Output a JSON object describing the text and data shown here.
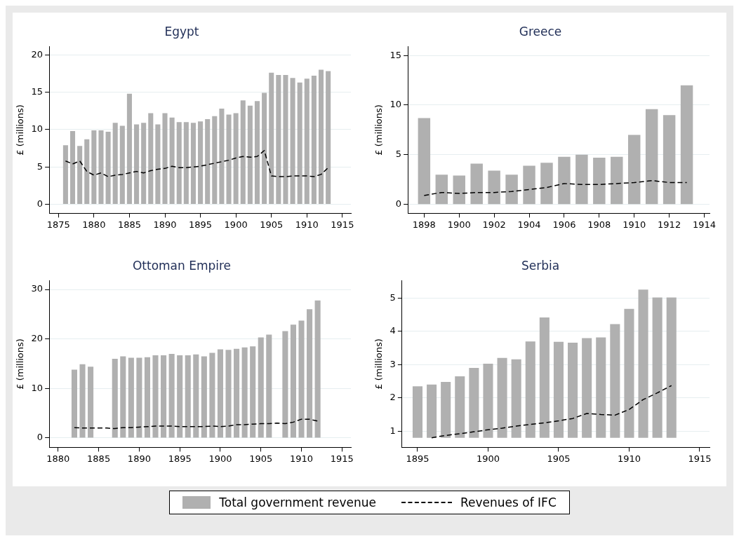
{
  "chart_data": [
    {
      "type": "bar",
      "title": "Egypt",
      "ylabel": "£ (millions)",
      "xlim": [
        1873.7,
        1916.2
      ],
      "xticks": [
        1875,
        1880,
        1885,
        1890,
        1895,
        1900,
        1905,
        1910,
        1915
      ],
      "ylim": [
        -1.2,
        21.1
      ],
      "yticks": [
        0,
        5,
        10,
        15,
        20
      ],
      "grid": "y",
      "legend": "bottom",
      "x": [
        1876,
        1877,
        1878,
        1879,
        1880,
        1881,
        1882,
        1883,
        1884,
        1885,
        1886,
        1887,
        1888,
        1889,
        1890,
        1891,
        1892,
        1893,
        1894,
        1895,
        1896,
        1897,
        1898,
        1899,
        1900,
        1901,
        1902,
        1903,
        1904,
        1905,
        1906,
        1907,
        1908,
        1909,
        1910,
        1911,
        1912,
        1913
      ],
      "series": [
        {
          "name": "Total government revenue",
          "color": "#b0b0b0",
          "values": [
            7.9,
            9.8,
            7.8,
            8.7,
            9.9,
            9.9,
            9.7,
            10.9,
            10.5,
            14.8,
            10.7,
            10.9,
            12.2,
            10.7,
            12.2,
            11.6,
            11.0,
            11.0,
            10.9,
            11.1,
            11.4,
            11.8,
            12.8,
            12.0,
            12.2,
            13.9,
            13.2,
            13.8,
            14.9,
            17.6,
            17.3,
            17.3,
            16.9,
            16.3,
            16.8,
            17.2,
            18.0,
            17.8
          ]
        },
        {
          "name": "Revenues of IFC",
          "type": "line",
          "color": "#000000",
          "line_style": "dashed",
          "marker": "none",
          "values": [
            5.8,
            5.4,
            5.8,
            4.4,
            3.9,
            4.2,
            3.7,
            3.9,
            4.0,
            4.2,
            4.4,
            4.2,
            4.5,
            4.7,
            4.8,
            5.1,
            4.9,
            4.9,
            5.0,
            5.1,
            5.3,
            5.5,
            5.7,
            5.9,
            6.2,
            6.4,
            6.3,
            6.4,
            7.2,
            3.8,
            3.7,
            3.7,
            3.8,
            3.8,
            3.8,
            3.7,
            4.0,
            4.9
          ]
        }
      ]
    },
    {
      "type": "bar",
      "title": "Greece",
      "ylabel": "£ (millions)",
      "xlim": [
        1897.07,
        1914.3
      ],
      "xticks": [
        1898,
        1900,
        1902,
        1904,
        1906,
        1908,
        1910,
        1912,
        1914
      ],
      "ylim": [
        -0.9,
        15.9
      ],
      "yticks": [
        0,
        5,
        10,
        15
      ],
      "grid": "y",
      "x": [
        1898,
        1899,
        1900,
        1901,
        1902,
        1903,
        1904,
        1905,
        1906,
        1907,
        1908,
        1909,
        1910,
        1911,
        1912,
        1913
      ],
      "series": [
        {
          "color": "#b0b0b0",
          "values": [
            8.7,
            3.0,
            2.9,
            4.1,
            3.4,
            3.0,
            3.9,
            4.2,
            4.8,
            5.0,
            4.7,
            4.8,
            7.0,
            9.6,
            9.0,
            12.0
          ]
        },
        {
          "type": "line",
          "color": "#000000",
          "line_style": "dashed",
          "marker": "none",
          "values": [
            0.9,
            1.2,
            1.1,
            1.2,
            1.2,
            1.3,
            1.5,
            1.7,
            2.1,
            2.0,
            2.0,
            2.1,
            2.2,
            2.4,
            2.2,
            2.2
          ]
        }
      ]
    },
    {
      "type": "bar",
      "title": "Ottoman Empire",
      "ylabel": "£ (millions)",
      "xlim": [
        1878.9,
        1916.1
      ],
      "xticks": [
        1880,
        1885,
        1890,
        1895,
        1900,
        1905,
        1910,
        1915
      ],
      "ylim": [
        -1.9,
        31.8
      ],
      "yticks": [
        0,
        10,
        20,
        30
      ],
      "grid": "y",
      "x": [
        1882,
        1883,
        1884,
        1885,
        1886,
        1887,
        1888,
        1889,
        1890,
        1891,
        1892,
        1893,
        1894,
        1895,
        1896,
        1897,
        1898,
        1899,
        1900,
        1901,
        1902,
        1903,
        1904,
        1905,
        1906,
        1907,
        1908,
        1909,
        1910,
        1911,
        1912
      ],
      "series": [
        {
          "color": "#b0b0b0",
          "values": [
            13.8,
            14.9,
            14.4,
            null,
            null,
            16.0,
            16.5,
            16.2,
            16.2,
            16.3,
            16.7,
            16.7,
            17.0,
            16.7,
            16.7,
            16.9,
            16.5,
            17.2,
            17.9,
            17.8,
            18.0,
            18.3,
            18.5,
            20.3,
            20.9,
            null,
            21.6,
            22.9,
            23.7,
            26.0,
            27.8
          ]
        },
        {
          "type": "line",
          "color": "#000000",
          "line_style": "dashed",
          "marker": "none",
          "values": [
            2.1,
            2.0,
            2.0,
            2.0,
            2.0,
            1.9,
            2.1,
            2.1,
            2.2,
            2.3,
            2.4,
            2.4,
            2.4,
            2.3,
            2.3,
            2.3,
            2.3,
            2.4,
            2.3,
            2.4,
            2.7,
            2.7,
            2.8,
            2.9,
            2.9,
            3.0,
            2.9,
            3.2,
            3.8,
            3.8,
            3.4
          ]
        }
      ]
    },
    {
      "type": "bar",
      "title": "Serbia",
      "ylabel": "£ (millions)",
      "xlim": [
        1893.9,
        1915.7
      ],
      "xticks": [
        1895,
        1900,
        1905,
        1910,
        1915
      ],
      "ylim": [
        0.51,
        5.53
      ],
      "yticks": [
        1,
        2,
        3,
        4,
        5
      ],
      "grid": "y",
      "series": [
        {
          "color": "#b0b0b0",
          "x": [
            1895,
            1896,
            1897,
            1898,
            1899,
            1900,
            1901,
            1902,
            1903,
            1904,
            1905,
            1906,
            1907,
            1908,
            1909,
            1910,
            1911,
            1912,
            1913
          ],
          "base": [
            0.8,
            0.8,
            0.8,
            0.8,
            0.8,
            0.8,
            0.8,
            0.8,
            0.8,
            0.8,
            0.8,
            0.8,
            0.8,
            0.8,
            0.8,
            0.8,
            0.8,
            0.8,
            0.8
          ],
          "values": [
            1.55,
            1.6,
            1.68,
            1.85,
            2.1,
            2.23,
            2.4,
            2.36,
            2.9,
            3.62,
            2.89,
            2.86,
            3.0,
            3.02,
            3.42,
            3.88,
            4.46,
            4.22,
            4.22
          ]
        },
        {
          "type": "line",
          "color": "#000000",
          "line_style": "dashed",
          "marker": "none",
          "x": [
            1896,
            1897,
            1898,
            1899,
            1900,
            1901,
            1902,
            1903,
            1904,
            1905,
            1906,
            1907,
            1908,
            1909,
            1910,
            1911,
            1912,
            1913
          ],
          "values": [
            0.8,
            0.87,
            0.92,
            0.98,
            1.04,
            1.09,
            1.15,
            1.2,
            1.25,
            1.31,
            1.38,
            1.53,
            1.5,
            1.48,
            1.65,
            1.95,
            2.15,
            2.37
          ]
        }
      ]
    }
  ]
}
